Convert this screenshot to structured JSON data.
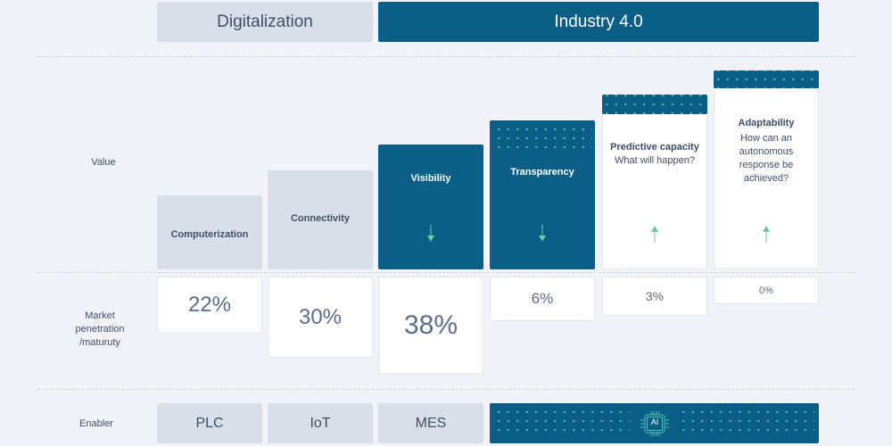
{
  "headers": {
    "digitalization": "Digitalization",
    "industry": "Industry 4.0"
  },
  "rows": {
    "value": "Value",
    "market": "Market penetration /maturuty",
    "enabler": "Enabler"
  },
  "stages": [
    {
      "title": "Computerization",
      "subtitle": "",
      "market": "22%"
    },
    {
      "title": "Connectivity",
      "subtitle": "",
      "market": "30%"
    },
    {
      "title": "Visibility",
      "subtitle": "",
      "market": "38%",
      "arrow": "down"
    },
    {
      "title": "Transparency",
      "subtitle": "",
      "market": "6%",
      "arrow": "down"
    },
    {
      "title": "Predictive capacity",
      "subtitle": "What will happen?",
      "market": "3%",
      "arrow": "up"
    },
    {
      "title": "Adaptability",
      "subtitle": "How can an autonomous response be achieved?",
      "market": "0%",
      "arrow": "up"
    }
  ],
  "enablers": [
    "PLC",
    "IoT",
    "MES"
  ],
  "ai_chip": {
    "label": "AI",
    "icon": "ai-chip-icon"
  },
  "colors": {
    "teal": "#0b5f86",
    "gray": "#d9dfe9",
    "arrow": "#6fc6a0",
    "dots": "#4fc3b0"
  }
}
